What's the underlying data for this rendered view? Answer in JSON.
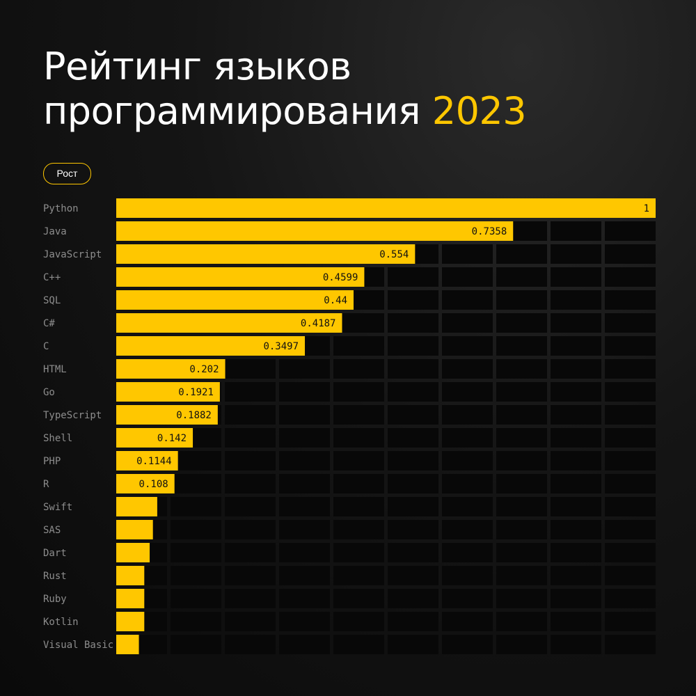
{
  "header": {
    "title_line1": "Рейтинг языков",
    "title_line2": "программирования",
    "title_year": "2023"
  },
  "legend": {
    "label": "Рост"
  },
  "colors": {
    "bar": "#ffc700",
    "cell": "#080808",
    "label": "#8d8d8d",
    "value": "#111111",
    "accent": "#ffc700"
  },
  "chart_data": {
    "type": "bar",
    "orientation": "horizontal",
    "title": "Рейтинг языков программирования 2023",
    "legend": [
      "Рост"
    ],
    "grid": true,
    "xlim": [
      0,
      1
    ],
    "categories": [
      "Python",
      "Java",
      "JavaScript",
      "C++",
      "SQL",
      "C#",
      "C",
      "HTML",
      "Go",
      "TypeScript",
      "Shell",
      "PHP",
      "R",
      "Swift",
      "SAS",
      "Dart",
      "Rust",
      "Ruby",
      "Kotlin",
      "Visual Basic"
    ],
    "values": [
      1,
      0.7358,
      0.554,
      0.4599,
      0.44,
      0.4187,
      0.3497,
      0.202,
      0.1921,
      0.1882,
      0.142,
      0.1144,
      0.108,
      0.076,
      0.068,
      0.062,
      0.052,
      0.052,
      0.052,
      0.042
    ],
    "value_labels": [
      "1",
      "0.7358",
      "0.554",
      "0.4599",
      "0.44",
      "0.4187",
      "0.3497",
      "0.202",
      "0.1921",
      "0.1882",
      "0.142",
      "0.1144",
      "0.108",
      "",
      "",
      "",
      "",
      "",
      "",
      ""
    ]
  }
}
